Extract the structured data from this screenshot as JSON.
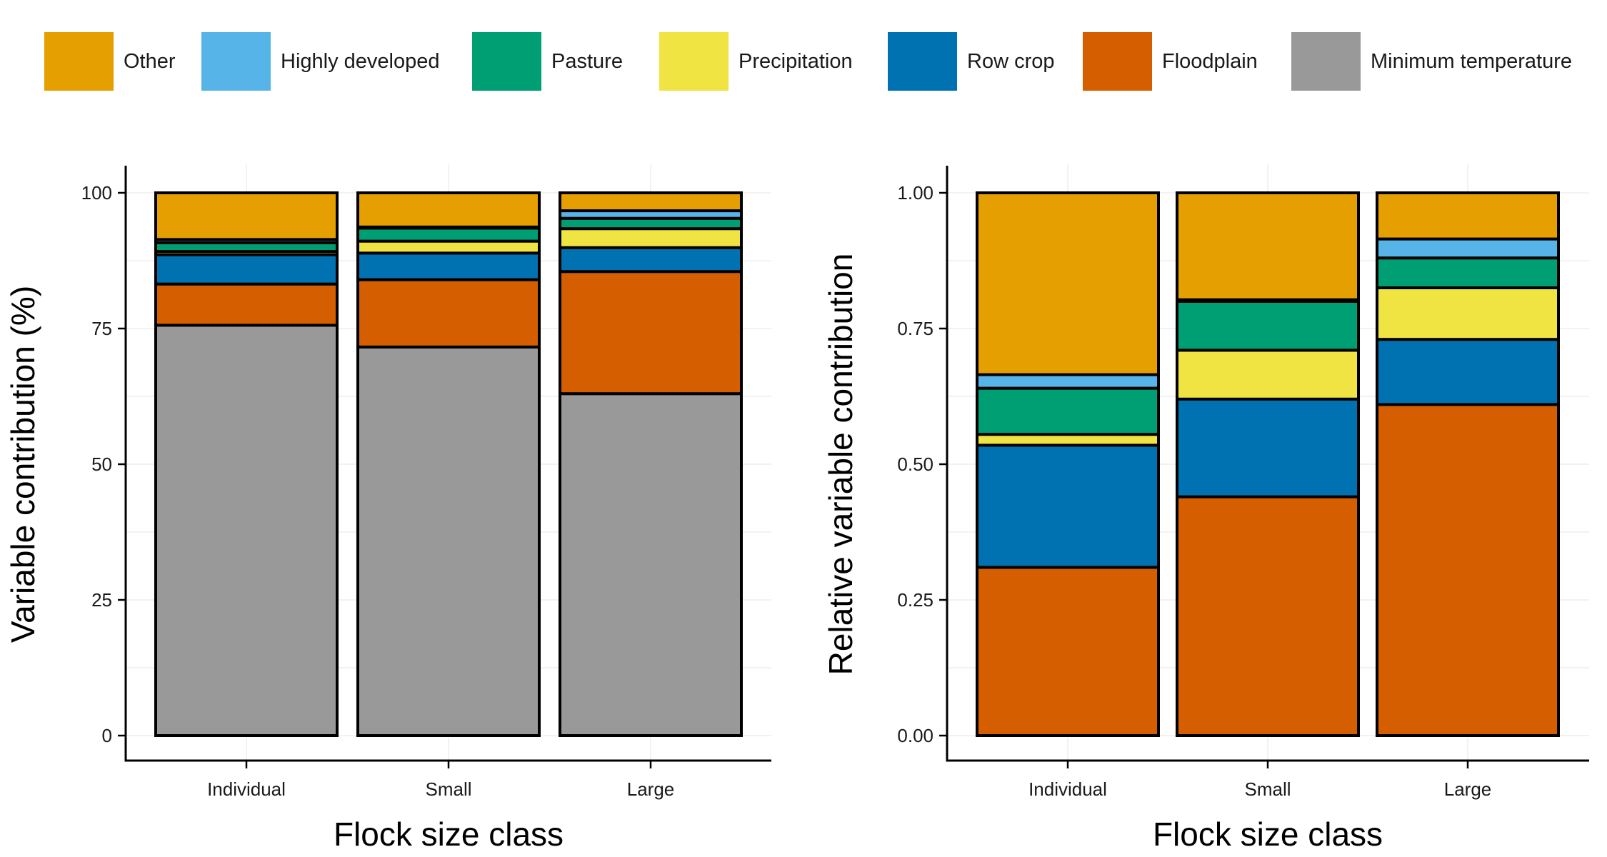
{
  "legend": {
    "items": [
      {
        "label": "Other",
        "color": "#E69F00"
      },
      {
        "label": "Highly developed",
        "color": "#56B4E9"
      },
      {
        "label": "Pasture",
        "color": "#009E73"
      },
      {
        "label": "Precipitation",
        "color": "#F0E442"
      },
      {
        "label": "Row crop",
        "color": "#0072B2"
      },
      {
        "label": "Floodplain",
        "color": "#D55E00"
      },
      {
        "label": "Minimum temperature",
        "color": "#999999"
      }
    ]
  },
  "chart_data": [
    {
      "type": "bar",
      "stacked": true,
      "xlabel": "Flock size class",
      "ylabel": "Variable contribution (%)",
      "ylim": [
        0,
        100
      ],
      "yticks": [
        "0",
        "25",
        "50",
        "75",
        "100"
      ],
      "ytick_values": [
        0,
        25,
        50,
        75,
        100
      ],
      "grid": true,
      "categories": [
        "Individual",
        "Small",
        "Large"
      ],
      "series": [
        {
          "name": "Minimum temperature",
          "values": [
            75.6,
            71.6,
            63.0
          ]
        },
        {
          "name": "Floodplain",
          "values": [
            7.6,
            12.4,
            22.5
          ]
        },
        {
          "name": "Row crop",
          "values": [
            5.4,
            4.9,
            4.4
          ]
        },
        {
          "name": "Precipitation",
          "values": [
            0.6,
            2.2,
            3.5
          ]
        },
        {
          "name": "Pasture",
          "values": [
            1.6,
            2.4,
            1.9
          ]
        },
        {
          "name": "Highly developed",
          "values": [
            0.6,
            0.2,
            1.4
          ]
        },
        {
          "name": "Other",
          "values": [
            8.6,
            6.3,
            3.3
          ]
        }
      ]
    },
    {
      "type": "bar",
      "stacked": true,
      "xlabel": "Flock size class",
      "ylabel": "Relative variable contribution",
      "ylim": [
        0,
        1
      ],
      "yticks": [
        "0.00",
        "0.25",
        "0.50",
        "0.75",
        "1.00"
      ],
      "ytick_values": [
        0,
        0.25,
        0.5,
        0.75,
        1.0
      ],
      "grid": true,
      "categories": [
        "Individual",
        "Small",
        "Large"
      ],
      "series": [
        {
          "name": "Floodplain",
          "values": [
            0.31,
            0.44,
            0.61
          ]
        },
        {
          "name": "Row crop",
          "values": [
            0.225,
            0.18,
            0.12
          ]
        },
        {
          "name": "Precipitation",
          "values": [
            0.02,
            0.09,
            0.095
          ]
        },
        {
          "name": "Pasture",
          "values": [
            0.085,
            0.09,
            0.055
          ]
        },
        {
          "name": "Highly developed",
          "values": [
            0.025,
            0.003,
            0.035
          ]
        },
        {
          "name": "Other",
          "values": [
            0.335,
            0.197,
            0.085
          ]
        }
      ]
    }
  ]
}
